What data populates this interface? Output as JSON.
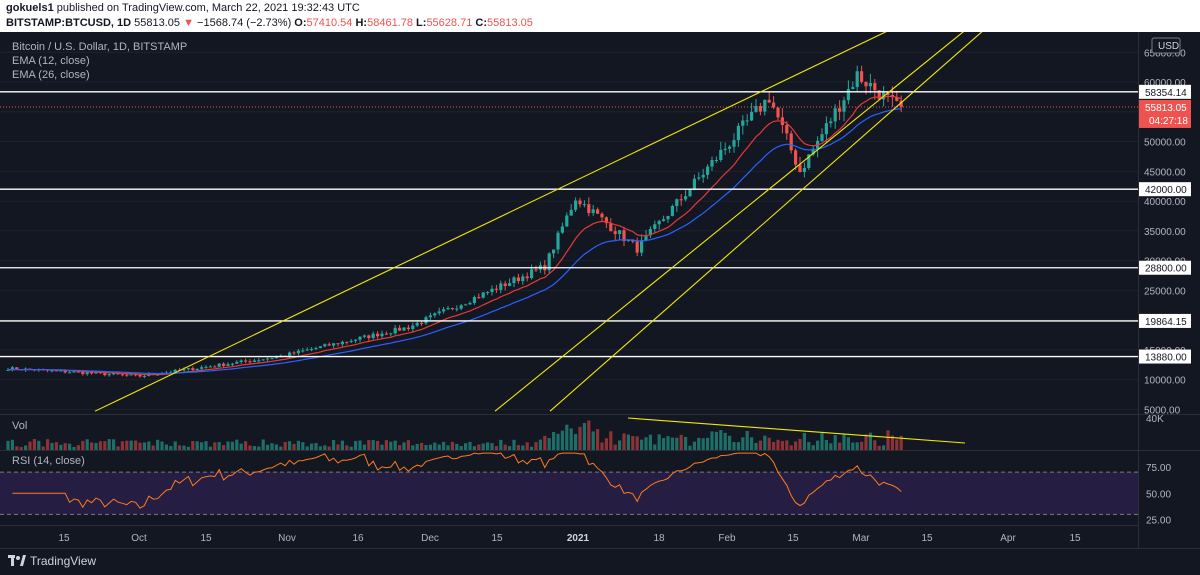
{
  "header": {
    "author": "gokuels1",
    "published_text": "published on TradingView.com, March 22, 2021 19:32:43 UTC",
    "symbol": "BITSTAMP:BTCUSD, 1D",
    "last": "55813.05",
    "change": "−1568.74 (−2.73%)",
    "o_label": "O:",
    "o": "57410.54",
    "h_label": "H:",
    "h": "58461.78",
    "l_label": "L:",
    "l": "55628.71",
    "c_label": "C:",
    "c": "55813.05"
  },
  "legend": {
    "title": "Bitcoin / U.S. Dollar, 1D, BITSTAMP",
    "ema12": "EMA (12, close)",
    "ema26": "EMA (26, close)",
    "vol": "Vol",
    "rsi": "RSI (14, close)"
  },
  "price_scale": {
    "currency": "USD",
    "ticks": [
      "65000.00",
      "60000.00",
      "55000.00",
      "50000.00",
      "45000.00",
      "40000.00",
      "35000.00",
      "30000.00",
      "25000.00",
      "20000.00",
      "15000.00",
      "10000.00",
      "5000.00"
    ],
    "tick_values": [
      65000,
      60000,
      55000,
      50000,
      45000,
      40000,
      35000,
      30000,
      25000,
      20000,
      15000,
      10000,
      5000
    ],
    "current_price": "55813.05",
    "countdown": "04:27:18"
  },
  "levels": [
    {
      "label": "58354.14",
      "value": 58354.14
    },
    {
      "label": "42000.00",
      "value": 42000
    },
    {
      "label": "28800.00",
      "value": 28800
    },
    {
      "label": "19864.15",
      "value": 19864.15
    },
    {
      "label": "13880.00",
      "value": 13880
    }
  ],
  "volume_scale": {
    "tick": "40K"
  },
  "rsi_scale": {
    "ticks": [
      "75.00",
      "50.00",
      "25.00"
    ],
    "tick_values": [
      75,
      50,
      25
    ]
  },
  "time_axis": [
    "15",
    "Oct",
    "15",
    "Nov",
    "16",
    "Dec",
    "15",
    "2021",
    "18",
    "Feb",
    "15",
    "Mar",
    "15",
    "Apr",
    "15"
  ],
  "footer": {
    "brand": "TradingView"
  },
  "colors": {
    "background": "#131722",
    "up": "#26a69a",
    "down": "#ef5350",
    "ema12": "#e53935",
    "ema26": "#2962ff",
    "trendline": "#f2e900",
    "level_line": "#ffffff",
    "rsi_line": "#ff7b1c",
    "rsi_band": "#2a1f4b"
  },
  "chart_data": {
    "type": "candlestick",
    "title": "Bitcoin / U.S. Dollar, 1D, BITSTAMP",
    "x_range": [
      "2020-09-01",
      "2021-04-20"
    ],
    "ylim": [
      5000,
      66000
    ],
    "key_closes": [
      {
        "date": "2020-09-01",
        "value": 11900
      },
      {
        "date": "2020-10-01",
        "value": 10600
      },
      {
        "date": "2020-11-01",
        "value": 13800
      },
      {
        "date": "2020-12-01",
        "value": 18800
      },
      {
        "date": "2021-01-01",
        "value": 29000
      },
      {
        "date": "2021-01-08",
        "value": 40600
      },
      {
        "date": "2021-01-22",
        "value": 32000
      },
      {
        "date": "2021-02-08",
        "value": 46400
      },
      {
        "date": "2021-02-21",
        "value": 57500
      },
      {
        "date": "2021-02-28",
        "value": 45000
      },
      {
        "date": "2021-03-13",
        "value": 61200
      },
      {
        "date": "2021-03-22",
        "value": 55813
      }
    ],
    "rsi_ylim": [
      20,
      90
    ]
  }
}
